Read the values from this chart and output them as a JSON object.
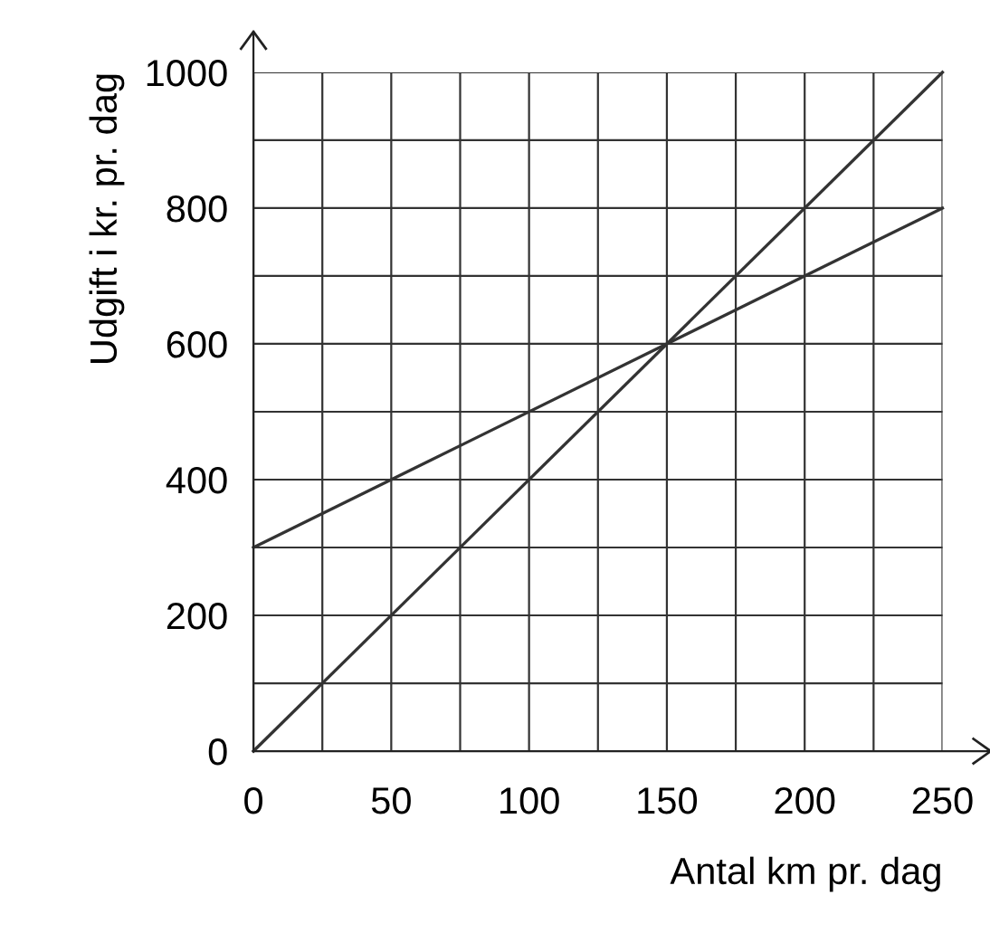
{
  "chart_data": {
    "type": "line",
    "xlabel": "Antal km pr. dag",
    "ylabel": "Udgift i kr. pr. dag",
    "x": [
      0,
      250
    ],
    "series": [
      {
        "color": "#333333",
        "values": [
          0,
          1000
        ]
      },
      {
        "color": "#333333",
        "values": [
          300,
          800
        ]
      }
    ],
    "xlim": [
      0,
      250
    ],
    "ylim": [
      0,
      1000
    ],
    "xticks": [
      0,
      {
        "value": 25,
        "label": null
      },
      50,
      {
        "value": 75,
        "label": null
      },
      100,
      {
        "value": 125,
        "label": null
      },
      150,
      {
        "value": 175,
        "label": null
      },
      200,
      {
        "value": 225,
        "label": null
      },
      250
    ],
    "yticks": [
      0,
      {
        "value": 100,
        "label": null
      },
      200,
      {
        "value": 300,
        "label": null
      },
      400,
      {
        "value": 500,
        "label": null
      },
      600,
      {
        "value": 700,
        "label": null
      },
      800,
      {
        "value": 900,
        "label": null
      },
      1000
    ],
    "grid": true,
    "legend": false,
    "marker": "none",
    "line_style": "solid"
  }
}
